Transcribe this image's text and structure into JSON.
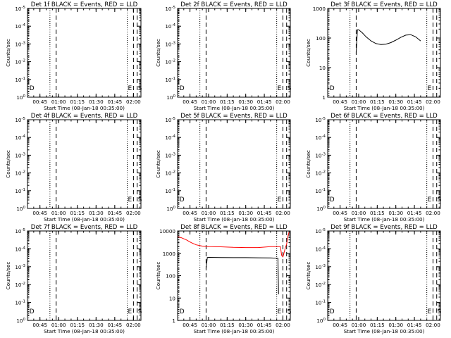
{
  "colors": {
    "events": "#000000",
    "lld": "#ff0000",
    "background": "#ffffff",
    "axes": "#000000"
  },
  "time_axis": {
    "ticks": [
      "00:45",
      "01:00",
      "01:15",
      "01:30",
      "01:45",
      "02:00"
    ],
    "xlabel": "Start Time (08-Jan-18 00:35:00)"
  },
  "chart_data": [
    {
      "type": "line",
      "panel": 1,
      "title": "Det 1f BLACK = Events, RED = LLD",
      "xlabel": "Start Time (08-Jan-18 00:35:00)",
      "ylabel": "Counts/sec",
      "ylim_exp": [
        0,
        5
      ],
      "yticks": [
        {
          "text": "10",
          "exp": "0"
        },
        {
          "text": "10",
          "exp": "-1"
        },
        {
          "text": "10",
          "exp": "-2"
        },
        {
          "text": "10",
          "exp": "-3"
        },
        {
          "text": "10",
          "exp": "-4"
        },
        {
          "text": "10",
          "exp": "-5"
        }
      ],
      "vlines": [
        {
          "time": "00:36",
          "style": "dotted",
          "label": "D"
        },
        {
          "time": "00:53",
          "style": "dotted"
        },
        {
          "time": "00:58",
          "style": "dashed"
        },
        {
          "time": "01:55",
          "style": "dotted",
          "label": "E"
        },
        {
          "time": "02:00",
          "style": "dashed"
        },
        {
          "time": "02:03",
          "style": "dashed",
          "label": "S"
        }
      ],
      "series": []
    },
    {
      "type": "line",
      "panel": 2,
      "title": "Det 2f BLACK = Events, RED = LLD",
      "xlabel": "Start Time (08-Jan-18 00:35:00)",
      "ylabel": "Counts/sec",
      "ylim_exp": [
        0,
        5
      ],
      "yticks": [
        {
          "text": "10",
          "exp": "0"
        },
        {
          "text": "10",
          "exp": "-1"
        },
        {
          "text": "10",
          "exp": "-2"
        },
        {
          "text": "10",
          "exp": "-3"
        },
        {
          "text": "10",
          "exp": "-4"
        },
        {
          "text": "10",
          "exp": "-5"
        }
      ],
      "vlines": [
        {
          "time": "00:36",
          "style": "dotted",
          "label": "D"
        },
        {
          "time": "00:53",
          "style": "dotted"
        },
        {
          "time": "00:58",
          "style": "dashed"
        },
        {
          "time": "01:55",
          "style": "dotted",
          "label": "E"
        },
        {
          "time": "02:00",
          "style": "dashed"
        },
        {
          "time": "02:03",
          "style": "dashed",
          "label": "S"
        }
      ],
      "series": []
    },
    {
      "type": "line",
      "panel": 3,
      "title": "Det 3f BLACK = Events, RED = LLD",
      "xlabel": "Start Time (08-Jan-18 00:35:00)",
      "ylabel": "Counts/sec",
      "ylim_exp": [
        0,
        3
      ],
      "yticks": [
        {
          "text": "1",
          "exp": ""
        },
        {
          "text": "10",
          "exp": ""
        },
        {
          "text": "100",
          "exp": ""
        },
        {
          "text": "1000",
          "exp": ""
        }
      ],
      "vlines": [
        {
          "time": "00:36",
          "style": "dotted",
          "label": "D"
        },
        {
          "time": "00:53",
          "style": "dotted"
        },
        {
          "time": "00:58",
          "style": "dashed"
        },
        {
          "time": "01:55",
          "style": "dotted",
          "label": "E"
        },
        {
          "time": "02:00",
          "style": "dashed"
        },
        {
          "time": "02:03",
          "style": "dashed"
        }
      ],
      "series": [
        {
          "color": "#000000",
          "x": [
            "00:58",
            "00:59",
            "01:00",
            "01:03",
            "01:06",
            "01:10",
            "01:14",
            "01:18",
            "01:22",
            "01:26",
            "01:30",
            "01:34",
            "01:38",
            "01:42",
            "01:46",
            "01:50"
          ],
          "y": [
            30,
            190,
            190,
            150,
            110,
            80,
            65,
            60,
            62,
            70,
            85,
            105,
            125,
            130,
            110,
            80
          ]
        }
      ]
    },
    {
      "type": "line",
      "panel": 4,
      "title": "Det 4f BLACK = Events, RED = LLD",
      "xlabel": "Start Time (08-Jan-18 00:35:00)",
      "ylabel": "Counts/sec",
      "ylim_exp": [
        0,
        5
      ],
      "yticks": [
        {
          "text": "10",
          "exp": "0"
        },
        {
          "text": "10",
          "exp": "-1"
        },
        {
          "text": "10",
          "exp": "-2"
        },
        {
          "text": "10",
          "exp": "-3"
        },
        {
          "text": "10",
          "exp": "-4"
        },
        {
          "text": "10",
          "exp": "-5"
        }
      ],
      "vlines": [
        {
          "time": "00:53",
          "style": "dotted"
        },
        {
          "time": "00:58",
          "style": "dashed"
        },
        {
          "time": "01:55",
          "style": "dotted",
          "label": "E"
        },
        {
          "time": "02:00",
          "style": "dashed"
        },
        {
          "time": "02:03",
          "style": "dashed",
          "label": "S"
        }
      ],
      "series": []
    },
    {
      "type": "line",
      "panel": 5,
      "title": "Det 5f BLACK = Events, RED = LLD",
      "xlabel": "Start Time (08-Jan-18 00:35:00)",
      "ylabel": "Counts/sec",
      "ylim_exp": [
        0,
        5
      ],
      "yticks": [
        {
          "text": "10",
          "exp": "0"
        },
        {
          "text": "10",
          "exp": "-1"
        },
        {
          "text": "10",
          "exp": "-2"
        },
        {
          "text": "10",
          "exp": "-3"
        },
        {
          "text": "10",
          "exp": "-4"
        },
        {
          "text": "10",
          "exp": "-5"
        }
      ],
      "vlines": [
        {
          "time": "00:36",
          "style": "dotted",
          "label": "D"
        },
        {
          "time": "00:53",
          "style": "dotted"
        },
        {
          "time": "00:58",
          "style": "dashed"
        },
        {
          "time": "01:55",
          "style": "dotted",
          "label": "E"
        },
        {
          "time": "02:00",
          "style": "dashed"
        },
        {
          "time": "02:03",
          "style": "dashed"
        }
      ],
      "series": []
    },
    {
      "type": "line",
      "panel": 6,
      "title": "Det 6f BLACK = Events, RED = LLD",
      "xlabel": "Start Time (08-Jan-18 00:35:00)",
      "ylabel": "Counts/sec",
      "ylim_exp": [
        0,
        5
      ],
      "yticks": [
        {
          "text": "10",
          "exp": "0"
        },
        {
          "text": "10",
          "exp": "-1"
        },
        {
          "text": "10",
          "exp": "-2"
        },
        {
          "text": "10",
          "exp": "-3"
        },
        {
          "text": "10",
          "exp": "-4"
        },
        {
          "text": "10",
          "exp": "-5"
        }
      ],
      "vlines": [
        {
          "time": "00:36",
          "style": "dotted",
          "label": "D"
        },
        {
          "time": "00:53",
          "style": "dotted"
        },
        {
          "time": "00:58",
          "style": "dashed"
        },
        {
          "time": "01:55",
          "style": "dotted",
          "label": "E"
        },
        {
          "time": "02:00",
          "style": "dashed"
        },
        {
          "time": "02:03",
          "style": "dashed",
          "label": "S"
        }
      ],
      "series": []
    },
    {
      "type": "line",
      "panel": 7,
      "title": "Det 7f BLACK = Events, RED = LLD",
      "xlabel": "Start Time (08-Jan-18 00:35:00)",
      "ylabel": "Counts/sec",
      "ylim_exp": [
        0,
        5
      ],
      "yticks": [
        {
          "text": "10",
          "exp": "0"
        },
        {
          "text": "10",
          "exp": "-1"
        },
        {
          "text": "10",
          "exp": "-2"
        },
        {
          "text": "10",
          "exp": "-3"
        },
        {
          "text": "10",
          "exp": "-4"
        },
        {
          "text": "10",
          "exp": "-5"
        }
      ],
      "vlines": [
        {
          "time": "00:36",
          "style": "dotted",
          "label": "D"
        },
        {
          "time": "00:53",
          "style": "dotted"
        },
        {
          "time": "00:58",
          "style": "dashed"
        },
        {
          "time": "01:55",
          "style": "dotted",
          "label": "E"
        },
        {
          "time": "02:00",
          "style": "dashed"
        },
        {
          "time": "02:03",
          "style": "dashed",
          "label": "S"
        }
      ],
      "series": []
    },
    {
      "type": "line",
      "panel": 8,
      "title": "Det 8f BLACK = Events, RED = LLD",
      "xlabel": "Start Time (08-Jan-18 00:35:00)",
      "ylabel": "Counts/sec",
      "ylim_exp": [
        0,
        4
      ],
      "yticks": [
        {
          "text": "1",
          "exp": ""
        },
        {
          "text": "10",
          "exp": ""
        },
        {
          "text": "100",
          "exp": ""
        },
        {
          "text": "1000",
          "exp": ""
        },
        {
          "text": "10000",
          "exp": ""
        }
      ],
      "vlines": [
        {
          "time": "00:36",
          "style": "dotted",
          "label": "D"
        },
        {
          "time": "00:53",
          "style": "dotted"
        },
        {
          "time": "00:58",
          "style": "dashed"
        },
        {
          "time": "01:55",
          "style": "dotted",
          "label": "E"
        },
        {
          "time": "02:00",
          "style": "dashed"
        },
        {
          "time": "02:03",
          "style": "dashed",
          "label": "S"
        }
      ],
      "series": [
        {
          "color": "#ff0000",
          "x": [
            "00:35",
            "00:38",
            "00:42",
            "00:46",
            "00:50",
            "00:55",
            "01:00",
            "01:10",
            "01:20",
            "01:30",
            "01:40",
            "01:50",
            "01:56",
            "01:58",
            "01:59",
            "02:00",
            "02:02",
            "02:03",
            "02:04",
            "02:05"
          ],
          "y": [
            5500,
            5000,
            4000,
            3000,
            2400,
            2100,
            2000,
            1950,
            1850,
            1800,
            1800,
            2000,
            2000,
            2000,
            800,
            700,
            1800,
            2500,
            5500,
            9000
          ]
        },
        {
          "color": "#000000",
          "x": [
            "00:58",
            "00:59",
            "01:00",
            "01:10",
            "01:20",
            "01:30",
            "01:40",
            "01:50",
            "01:56",
            "01:56.5"
          ],
          "y": [
            200,
            650,
            660,
            650,
            640,
            640,
            630,
            620,
            600,
            15
          ]
        }
      ]
    },
    {
      "type": "line",
      "panel": 9,
      "title": "Det 9f BLACK = Events, RED = LLD",
      "xlabel": "Start Time (08-Jan-18 00:35:00)",
      "ylabel": "Counts/sec",
      "ylim_exp": [
        0,
        5
      ],
      "yticks": [
        {
          "text": "10",
          "exp": "0"
        },
        {
          "text": "10",
          "exp": "-1"
        },
        {
          "text": "10",
          "exp": "-2"
        },
        {
          "text": "10",
          "exp": "-3"
        },
        {
          "text": "10",
          "exp": "-4"
        },
        {
          "text": "10",
          "exp": "-5"
        }
      ],
      "vlines": [
        {
          "time": "00:36",
          "style": "dotted",
          "label": "D"
        },
        {
          "time": "00:53",
          "style": "dotted"
        },
        {
          "time": "00:58",
          "style": "dashed"
        },
        {
          "time": "01:55",
          "style": "dotted",
          "label": "E"
        },
        {
          "time": "02:00",
          "style": "dashed"
        },
        {
          "time": "02:03",
          "style": "dashed",
          "label": "S"
        }
      ],
      "series": []
    }
  ]
}
